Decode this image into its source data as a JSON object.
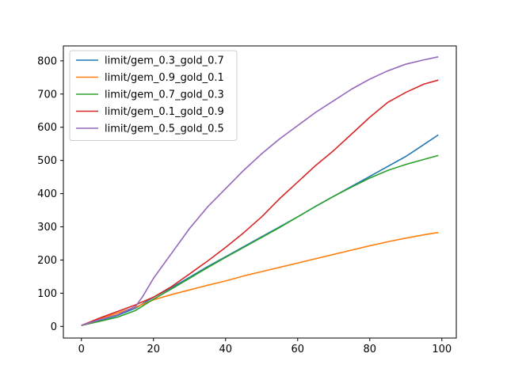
{
  "chart_data": {
    "type": "line",
    "title": "",
    "xlabel": "",
    "ylabel": "",
    "xlim": [
      -5,
      104
    ],
    "ylim": [
      -35,
      845
    ],
    "xticks": [
      0,
      20,
      40,
      60,
      80,
      100
    ],
    "yticks": [
      0,
      100,
      200,
      300,
      400,
      500,
      600,
      700,
      800
    ],
    "grid": false,
    "legend_position": "top-left",
    "series": [
      {
        "name": "limit/gem_0.3_gold_0.7",
        "color": "#1f77b4",
        "x": [
          0,
          5,
          10,
          15,
          20,
          25,
          30,
          35,
          40,
          45,
          50,
          55,
          60,
          65,
          70,
          75,
          80,
          85,
          90,
          95,
          99
        ],
        "y": [
          3,
          18,
          33,
          55,
          88,
          117,
          148,
          180,
          210,
          240,
          270,
          300,
          330,
          362,
          392,
          422,
          452,
          482,
          512,
          548,
          577
        ]
      },
      {
        "name": "limit/gem_0.9_gold_0.1",
        "color": "#ff7f0e",
        "x": [
          0,
          5,
          10,
          15,
          20,
          25,
          30,
          35,
          40,
          45,
          50,
          55,
          60,
          65,
          70,
          75,
          80,
          85,
          90,
          95,
          99
        ],
        "y": [
          3,
          22,
          40,
          58,
          80,
          96,
          110,
          124,
          137,
          152,
          165,
          178,
          191,
          204,
          217,
          230,
          243,
          255,
          266,
          276,
          283
        ]
      },
      {
        "name": "limit/gem_0.7_gold_0.3",
        "color": "#2ca02c",
        "x": [
          0,
          5,
          10,
          15,
          20,
          25,
          30,
          35,
          40,
          45,
          50,
          55,
          60,
          65,
          70,
          75,
          80,
          85,
          90,
          95,
          99
        ],
        "y": [
          3,
          15,
          28,
          48,
          82,
          113,
          145,
          177,
          208,
          238,
          268,
          298,
          330,
          362,
          392,
          420,
          447,
          470,
          488,
          503,
          515
        ]
      },
      {
        "name": "limit/gem_0.1_gold_0.9",
        "color": "#d62728",
        "x": [
          0,
          5,
          10,
          15,
          20,
          25,
          30,
          35,
          40,
          45,
          50,
          55,
          60,
          65,
          70,
          75,
          80,
          85,
          90,
          95,
          99
        ],
        "y": [
          3,
          25,
          45,
          65,
          88,
          120,
          158,
          197,
          238,
          282,
          330,
          385,
          435,
          485,
          530,
          580,
          630,
          675,
          705,
          730,
          742
        ]
      },
      {
        "name": "limit/gem_0.5_gold_0.5",
        "color": "#9467bd",
        "x": [
          0,
          5,
          10,
          15,
          17,
          20,
          25,
          30,
          35,
          40,
          45,
          50,
          55,
          60,
          65,
          70,
          75,
          80,
          85,
          90,
          95,
          99
        ],
        "y": [
          3,
          20,
          35,
          60,
          90,
          145,
          220,
          295,
          360,
          415,
          470,
          520,
          565,
          605,
          645,
          680,
          715,
          745,
          770,
          790,
          803,
          812
        ]
      }
    ]
  }
}
